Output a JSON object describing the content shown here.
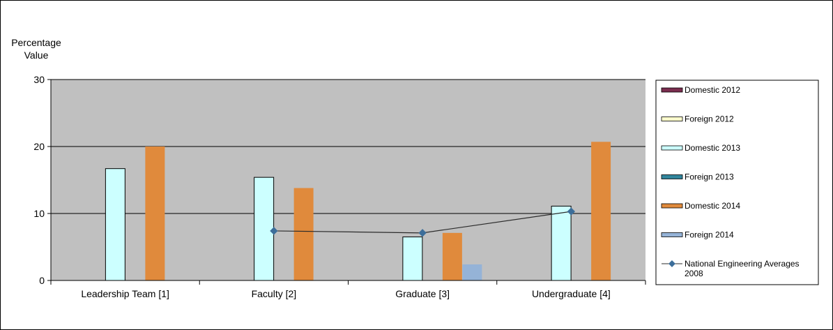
{
  "chart_data": {
    "type": "bar",
    "ylabel_lines": [
      "Percentage",
      "Value"
    ],
    "ylim": [
      0,
      30
    ],
    "yticks": [
      0,
      10,
      20,
      30
    ],
    "grid": true,
    "legend_position": "right",
    "plot_background": "#c0c0c0",
    "categories": [
      "Leadership Team [1]",
      "Faculty [2]",
      "Graduate [3]",
      "Undergraduate [4]"
    ],
    "series": [
      {
        "name": "Domestic 2012",
        "kind": "bar",
        "color": "#7b2d4f",
        "values": [
          0,
          0,
          0,
          0
        ]
      },
      {
        "name": "Foreign 2012",
        "kind": "bar",
        "color": "#ffffcc",
        "values": [
          0,
          0,
          0,
          0
        ]
      },
      {
        "name": "Domestic 2013",
        "kind": "bar",
        "color": "#ccffff",
        "values": [
          16.7,
          15.4,
          6.5,
          11.1
        ]
      },
      {
        "name": "Foreign 2013",
        "kind": "bar",
        "color": "#31859c",
        "values": [
          0,
          0,
          0,
          0
        ]
      },
      {
        "name": "Domestic 2014",
        "kind": "bar",
        "color": "#e08a3c",
        "values": [
          20,
          13.8,
          7.1,
          20.7
        ]
      },
      {
        "name": "Foreign 2014",
        "kind": "bar",
        "color": "#95b3d7",
        "values": [
          0,
          0,
          2.4,
          0
        ]
      },
      {
        "name": "National Engineering Averages 2008",
        "kind": "line",
        "color": "#3c6e9a",
        "values": [
          null,
          7.4,
          7.1,
          10.3
        ]
      }
    ]
  }
}
